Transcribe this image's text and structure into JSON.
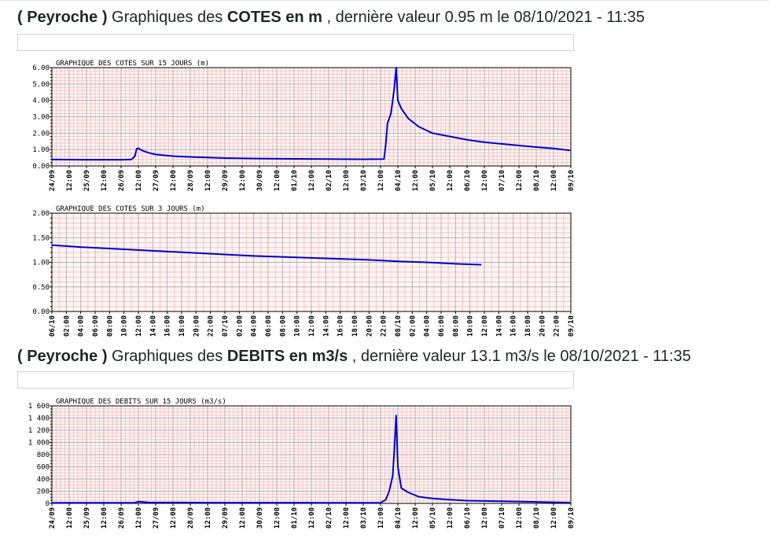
{
  "section1": {
    "station": "( Peyroche )",
    "prefix": " Graphiques des ",
    "bold": "COTES en m",
    "suffix": " , dernière valeur 0.95 m le 08/10/2021 - 11:35"
  },
  "section2": {
    "station": "( Peyroche )",
    "prefix": " Graphiques des ",
    "bold": "DEBITS en m3/s",
    "suffix": " , dernière valeur 13.1 m3/s le 08/10/2021 - 11:35"
  },
  "chart_data": [
    {
      "type": "line",
      "title": "GRAPHIQUE DES COTES SUR 15 JOURS (m)",
      "y_ticks": [
        "0.00",
        "1.00",
        "2.00",
        "3.00",
        "4.00",
        "5.00",
        "6.00"
      ],
      "x_ticks": [
        "24/09",
        "12:00",
        "25/09",
        "12:00",
        "26/09",
        "12:00",
        "27/09",
        "12:00",
        "28/09",
        "12:00",
        "29/09",
        "12:00",
        "30/09",
        "12:00",
        "01/10",
        "12:00",
        "02/10",
        "12:00",
        "03/10",
        "12:00",
        "04/10",
        "12:00",
        "05/10",
        "12:00",
        "06/10",
        "12:00",
        "07/10",
        "12:00",
        "08/10",
        "12:00",
        "09/10"
      ],
      "ylim": [
        0,
        6
      ],
      "color": "#0000cc",
      "series": [
        {
          "x": [
            0,
            1,
            2,
            2.3,
            2.4,
            2.45,
            2.5,
            2.6,
            2.8,
            3,
            3.5,
            4,
            5,
            6,
            7,
            8,
            9,
            9.6,
            9.65,
            9.7,
            9.8,
            9.9,
            9.95,
            10,
            10.1,
            10.3,
            10.6,
            11,
            11.5,
            12,
            12.5,
            13,
            13.5,
            14,
            14.5,
            14.98
          ],
          "y": [
            0.4,
            0.38,
            0.38,
            0.4,
            0.6,
            1.05,
            1.08,
            0.95,
            0.8,
            0.7,
            0.6,
            0.55,
            0.48,
            0.45,
            0.43,
            0.42,
            0.41,
            0.42,
            1.3,
            2.6,
            3.2,
            4.8,
            6.0,
            4.0,
            3.5,
            2.9,
            2.4,
            2.0,
            1.8,
            1.6,
            1.45,
            1.35,
            1.25,
            1.15,
            1.07,
            0.95
          ]
        }
      ]
    },
    {
      "type": "line",
      "title": "GRAPHIQUE DES COTES SUR 3 JOURS (m)",
      "y_ticks": [
        "0.00",
        "0.50",
        "1.00",
        "1.50",
        "2.00"
      ],
      "x_ticks": [
        "06/10",
        "02:00",
        "04:00",
        "06:00",
        "08:00",
        "10:00",
        "12:00",
        "14:00",
        "16:00",
        "18:00",
        "20:00",
        "22:00",
        "07/10",
        "02:00",
        "04:00",
        "06:00",
        "08:00",
        "10:00",
        "12:00",
        "14:00",
        "16:00",
        "18:00",
        "20:00",
        "22:00",
        "08/10",
        "02:00",
        "04:00",
        "06:00",
        "08:00",
        "10:00",
        "12:00",
        "14:00",
        "16:00",
        "18:00",
        "20:00",
        "22:00",
        "09/10"
      ],
      "ylim": [
        0,
        2
      ],
      "color": "#0000cc",
      "series": [
        {
          "x": [
            0,
            4,
            8,
            12,
            16,
            20,
            24,
            28,
            32,
            36,
            40,
            44,
            48,
            52,
            56,
            59.6
          ],
          "y": [
            1.35,
            1.31,
            1.28,
            1.25,
            1.22,
            1.19,
            1.16,
            1.13,
            1.11,
            1.09,
            1.07,
            1.05,
            1.02,
            1.0,
            0.97,
            0.95
          ]
        }
      ]
    },
    {
      "type": "line",
      "title": "GRAPHIQUE DES DEBITS SUR 15 JOURS (m3/s)",
      "y_ticks": [
        "0",
        "200",
        "400",
        "600",
        "800",
        "1 000",
        "1 200",
        "1 400",
        "1 600"
      ],
      "x_ticks": [
        "24/09",
        "12:00",
        "25/09",
        "12:00",
        "26/09",
        "12:00",
        "27/09",
        "12:00",
        "28/09",
        "12:00",
        "29/09",
        "12:00",
        "30/09",
        "12:00",
        "01/10",
        "12:00",
        "02/10",
        "12:00",
        "03/10",
        "12:00",
        "04/10",
        "12:00",
        "05/10",
        "12:00",
        "06/10",
        "12:00",
        "07/10",
        "12:00",
        "08/10",
        "12:00",
        "09/10"
      ],
      "ylim": [
        0,
        1600
      ],
      "color": "#0000cc",
      "series": [
        {
          "x": [
            0,
            2,
            2.4,
            2.5,
            2.6,
            2.8,
            5,
            8,
            9.5,
            9.65,
            9.75,
            9.85,
            9.9,
            9.95,
            10,
            10.1,
            10.3,
            10.6,
            11,
            11.5,
            12,
            13,
            14,
            14.98
          ],
          "y": [
            10,
            10,
            12,
            30,
            25,
            15,
            12,
            10,
            10,
            60,
            200,
            450,
            900,
            1440,
            600,
            250,
            180,
            110,
            80,
            60,
            45,
            35,
            25,
            13
          ]
        }
      ]
    }
  ]
}
